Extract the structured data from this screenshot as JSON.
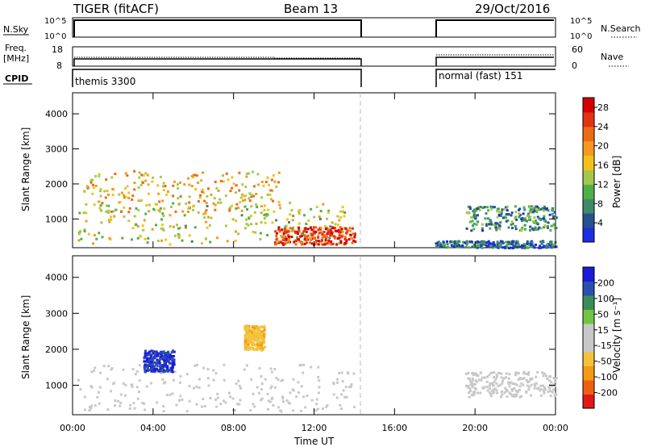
{
  "header": {
    "radar_title": "TIGER (fitACF)",
    "beam": "Beam 13",
    "date": "29/Oct/2016"
  },
  "nsky_panel": {
    "label": "N.Sky",
    "left_ticks": [
      "10^5",
      "10^0"
    ],
    "right_ticks": [
      "10^5",
      "10^0"
    ],
    "right_label": "N.Search"
  },
  "freq_panel": {
    "label_line1": "Freq.",
    "label_line2": "[MHz]",
    "left_ticks": [
      "18",
      "8"
    ],
    "right_ticks": [
      "60",
      "0"
    ],
    "right_label": "Nave"
  },
  "cpid_panel": {
    "label": "CPID",
    "segment1": "themis 3300",
    "segment2": "normal (fast) 151"
  },
  "colors": {
    "power_scale": [
      "#1a2fe0",
      "#26508f",
      "#3f8a6a",
      "#4fb04a",
      "#a6c84a",
      "#f2c21a",
      "#f39a1c",
      "#ee6a16",
      "#e33313",
      "#d40000"
    ],
    "velocity_scale": [
      "#e01818",
      "#ee6010",
      "#f59a14",
      "#f3c23a",
      "#c8c8c8",
      "#c8c8c8",
      "#74c444",
      "#3a8e5a",
      "#2a4fb0",
      "#1a1ad8"
    ]
  },
  "chart_data": [
    {
      "type": "heatmap",
      "name": "power",
      "xlabel": "",
      "ylabel": "Slant Range [km]",
      "x_ticks": [
        "00:00",
        "04:00",
        "08:00",
        "12:00",
        "16:00",
        "20:00",
        "00:00"
      ],
      "xlim_hours": [
        0,
        24
      ],
      "ylim_km": [
        180,
        4600
      ],
      "y_ticks": [
        1000,
        2000,
        3000,
        4000
      ],
      "data_gap_hours": [
        14.25,
        18.0
      ],
      "colorbar": {
        "label": "Power [dB]",
        "ticks": [
          4,
          8,
          12,
          16,
          20,
          24,
          28
        ],
        "range": [
          0,
          30
        ]
      },
      "features": [
        {
          "desc": "ground scatter band",
          "hours": [
            0.2,
            13.5
          ],
          "range_km": [
            300,
            1500
          ],
          "mean_power_db": 14
        },
        {
          "desc": "meandering echo band",
          "hours": [
            0.5,
            10.5
          ],
          "range_km": [
            1200,
            2400
          ],
          "mean_power_db": 18
        },
        {
          "desc": "strong near-range patch",
          "hours": [
            10.0,
            14.0
          ],
          "range_km": [
            300,
            800
          ],
          "mean_power_db": 26
        },
        {
          "desc": "evening echoes",
          "hours": [
            19.5,
            24.0
          ],
          "range_km": [
            700,
            1400
          ],
          "mean_power_db": 8
        },
        {
          "desc": "near-range noise",
          "hours": [
            18.0,
            24.0
          ],
          "range_km": [
            200,
            400
          ],
          "mean_power_db": 5
        }
      ]
    },
    {
      "type": "heatmap",
      "name": "velocity",
      "xlabel": "Time UT",
      "ylabel": "Slant Range [km]",
      "x_ticks": [
        "00:00",
        "04:00",
        "08:00",
        "12:00",
        "16:00",
        "20:00",
        "00:00"
      ],
      "xlim_hours": [
        0,
        24
      ],
      "ylim_km": [
        180,
        4600
      ],
      "y_ticks": [
        1000,
        2000,
        3000,
        4000
      ],
      "data_gap_hours": [
        14.25,
        18.0
      ],
      "colorbar": {
        "label": "Velocity [m s⁻¹]",
        "ticks": [
          200,
          100,
          50,
          15,
          -15,
          -50,
          -100,
          -200
        ],
        "range": [
          -250,
          250
        ]
      },
      "features": [
        {
          "desc": "ground scatter (grey)",
          "hours": [
            0.2,
            14.0
          ],
          "range_km": [
            300,
            1600
          ],
          "velocity_ms": 0
        },
        {
          "desc": "positive velocity cluster",
          "hours": [
            3.5,
            5.0
          ],
          "range_km": [
            1400,
            2000
          ],
          "velocity_ms": 200
        },
        {
          "desc": "negative velocity streak",
          "hours": [
            8.5,
            9.5
          ],
          "range_km": [
            2000,
            2700
          ],
          "velocity_ms": -80
        },
        {
          "desc": "evening ground scatter",
          "hours": [
            19.5,
            24.0
          ],
          "range_km": [
            700,
            1400
          ],
          "velocity_ms": 0
        }
      ]
    }
  ]
}
